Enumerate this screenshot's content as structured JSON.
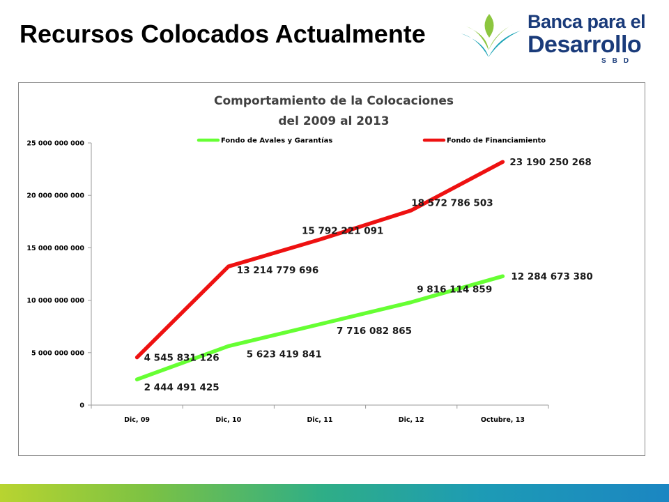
{
  "slide": {
    "title": "Recursos Colocados Actualmente"
  },
  "logo": {
    "line1": "Banca para el",
    "line2": "Desarrollo",
    "line3": "SBD",
    "colors": {
      "text": "#1a3b7a",
      "leaf_green": "#8cc63f",
      "leaf_blue": "#1aa3b5"
    }
  },
  "chart_data": {
    "type": "line",
    "title": [
      "Comportamiento de la Colocaciones",
      "del 2009 al 2013"
    ],
    "categories": [
      "Dic, 09",
      "Dic, 10",
      "Dic, 11",
      "Dic, 12",
      "Octubre, 13"
    ],
    "ylim": [
      0,
      25000000000
    ],
    "yticks": [
      0,
      5000000000,
      10000000000,
      15000000000,
      20000000000,
      25000000000
    ],
    "ytick_labels": [
      "0",
      "5 000 000 000",
      "10 000 000 000",
      "15 000 000 000",
      "20 000 000 000",
      "25 000 000 000"
    ],
    "grid": false,
    "legend_position": "top",
    "series": [
      {
        "name": "Fondo de Avales y Garantías",
        "color": "#66ff33",
        "values": [
          2444491425,
          5623419841,
          7716082865,
          9816114859,
          12284673380
        ],
        "labels": [
          "2 444 491 425",
          "5 623 419 841",
          "7 716 082 865",
          "9 816 114 859",
          "12 284 673 380"
        ]
      },
      {
        "name": "Fondo de Financiamiento",
        "color": "#ee1111",
        "values": [
          4545831126,
          13214779696,
          15792221091,
          18572786503,
          23190250268
        ],
        "labels": [
          "4 545 831 126",
          "13 214 779 696",
          "15 792 221 091",
          "18 572 786 503",
          "23 190 250 268"
        ]
      }
    ]
  },
  "theme": {
    "bottom_bar_colors": [
      "#b8d430",
      "#2fae86",
      "#1b86c2"
    ]
  }
}
